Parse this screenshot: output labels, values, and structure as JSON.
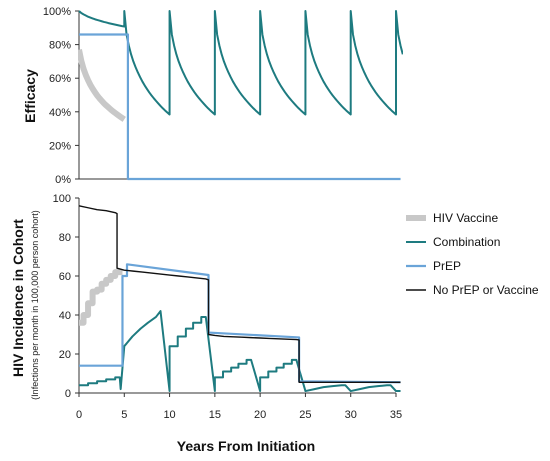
{
  "chart_data": [
    {
      "type": "line",
      "ylabel": "Efficacy",
      "xlim": [
        0,
        35
      ],
      "ylim": [
        0,
        100
      ],
      "y_ticks": [
        "0%",
        "20%",
        "40%",
        "60%",
        "80%",
        "100%"
      ],
      "y_tick_values": [
        0,
        20,
        40,
        60,
        80,
        100
      ],
      "grid": false,
      "series": [
        {
          "name": "HIV Vaccine",
          "color": "#c8c8c8",
          "x": [
            0,
            0.25,
            0.5,
            0.75,
            1,
            1.25,
            1.5,
            1.75,
            2,
            2.25,
            2.5,
            2.75,
            3,
            3.25,
            3.5,
            3.75,
            4,
            4.25,
            4.5,
            4.75,
            5
          ],
          "y": [
            77,
            70.4,
            65.6,
            61.9,
            58.8,
            56.1,
            53.8,
            51.7,
            49.8,
            48.1,
            46.6,
            45.1,
            43.8,
            42.6,
            41.4,
            40.3,
            39.3,
            38.3,
            37.3,
            36.4,
            35.5
          ]
        },
        {
          "name": "Combination",
          "color": "#1e7b80",
          "x": [
            0,
            0.25,
            0.5,
            0.75,
            1,
            1.25,
            1.5,
            1.75,
            2,
            2.25,
            2.5,
            2.75,
            3,
            3.25,
            3.5,
            3.75,
            4,
            4.25,
            4.5,
            4.75,
            5,
            5,
            5.25,
            5.5,
            5.75,
            6,
            6.25,
            6.5,
            6.75,
            7,
            7.25,
            7.5,
            7.75,
            8,
            8.25,
            8.5,
            8.75,
            9,
            9.25,
            9.5,
            9.75,
            10,
            10,
            10.25,
            10.5,
            10.75,
            11,
            11.25,
            11.5,
            11.75,
            12,
            12.25,
            12.5,
            12.75,
            13,
            13.25,
            13.5,
            13.75,
            14,
            14.25,
            14.5,
            14.75,
            15,
            15,
            15.25,
            15.5,
            15.75,
            16,
            16.25,
            16.5,
            16.75,
            17,
            17.25,
            17.5,
            17.75,
            18,
            18.25,
            18.5,
            18.75,
            19,
            19.25,
            19.5,
            19.75,
            20,
            20,
            20.25,
            20.5,
            20.75,
            21,
            21.25,
            21.5,
            21.75,
            22,
            22.25,
            22.5,
            22.75,
            23,
            23.25,
            23.5,
            23.75,
            24,
            24.25,
            24.5,
            24.75,
            25,
            25,
            25.25,
            25.5,
            25.75,
            26,
            26.25,
            26.5,
            26.75,
            27,
            27.25,
            27.5,
            27.75,
            28,
            28.25,
            28.5,
            28.75,
            29,
            29.25,
            29.5,
            29.75,
            30,
            30,
            30.25,
            30.5,
            30.75,
            31,
            31.25,
            31.5,
            31.75,
            32,
            32.25,
            32.5,
            32.75,
            33,
            33.25,
            33.5,
            33.75,
            34,
            34.25,
            34.5,
            34.75,
            35,
            35,
            35.25,
            35.5,
            35.75
          ],
          "y": [
            100,
            98.8,
            98,
            97.3,
            96.6,
            96.1,
            95.6,
            95.1,
            94.7,
            94.3,
            93.9,
            93.5,
            93.2,
            92.8,
            92.5,
            92.2,
            91.9,
            91.6,
            91.3,
            91,
            90.8,
            100,
            86,
            79.4,
            74.2,
            70,
            66.5,
            63.4,
            60.6,
            58,
            55.7,
            53.6,
            51.6,
            49.8,
            48.1,
            46.5,
            45,
            43.5,
            42.1,
            40.8,
            39.6,
            38.4,
            100,
            86,
            79.4,
            74.2,
            70,
            66.5,
            63.4,
            60.6,
            58,
            55.7,
            53.6,
            51.6,
            49.8,
            48.1,
            46.5,
            45,
            43.5,
            42.1,
            40.8,
            39.6,
            38.4,
            100,
            86,
            79.4,
            74.2,
            70,
            66.5,
            63.4,
            60.6,
            58,
            55.7,
            53.6,
            51.6,
            49.8,
            48.1,
            46.5,
            45,
            43.5,
            42.1,
            40.8,
            39.6,
            38.4,
            100,
            86,
            79.4,
            74.2,
            70,
            66.5,
            63.4,
            60.6,
            58,
            55.7,
            53.6,
            51.6,
            49.8,
            48.1,
            46.5,
            45,
            43.5,
            42.1,
            40.8,
            39.6,
            38.4,
            100,
            86,
            79.4,
            74.2,
            70,
            66.5,
            63.4,
            60.6,
            58,
            55.7,
            53.6,
            51.6,
            49.8,
            48.1,
            46.5,
            45,
            43.5,
            42.1,
            40.8,
            39.6,
            38.4,
            100,
            86,
            79.4,
            74.2,
            70,
            66.5,
            63.4,
            60.6,
            58,
            55.7,
            53.6,
            51.6,
            49.8,
            48.1,
            46.5,
            45,
            43.5,
            42.1,
            40.8,
            39.6,
            38.4,
            100,
            86,
            79.4,
            74.2
          ]
        },
        {
          "name": "PrEP",
          "color": "#6aa4d8",
          "x": [
            0,
            5.4,
            5.4,
            35.5
          ],
          "y": [
            86,
            86,
            0,
            0
          ]
        }
      ]
    },
    {
      "type": "line",
      "ylabel": "HIV Incidence in Cohort",
      "ylabel_sub": "(Infections per month in 100,000 person cohort)",
      "xlabel": "Years From Initiation",
      "xlim": [
        0,
        35
      ],
      "ylim": [
        0,
        100
      ],
      "x_ticks": [
        "0",
        "5",
        "10",
        "15",
        "20",
        "25",
        "30",
        "35"
      ],
      "x_tick_values": [
        0,
        5,
        10,
        15,
        20,
        25,
        30,
        35
      ],
      "y_ticks": [
        "0",
        "20",
        "40",
        "60",
        "80",
        "100"
      ],
      "y_tick_values": [
        0,
        20,
        40,
        60,
        80,
        100
      ],
      "grid": false,
      "legend_position": "right",
      "series": [
        {
          "name": "HIV Vaccine",
          "color": "#c8c8c8",
          "x": [
            0,
            0.5,
            0.5,
            1,
            1,
            1.5,
            1.5,
            2,
            2,
            2.5,
            2.5,
            3,
            3,
            3.5,
            3.5,
            4,
            4,
            4.8
          ],
          "y": [
            36,
            36,
            40,
            40,
            46,
            46,
            52,
            52,
            53,
            53,
            56,
            56,
            58,
            58,
            60,
            60,
            62,
            62
          ]
        },
        {
          "name": "Combination",
          "color": "#1e7b80",
          "x": [
            0,
            1,
            1,
            2,
            2,
            3,
            3,
            4,
            4,
            4.5,
            4.6,
            5,
            5,
            5.9,
            5.9,
            6.8,
            6.8,
            7.6,
            7.6,
            8.5,
            8.5,
            9,
            10,
            10,
            10.9,
            10.9,
            11.8,
            11.8,
            12.6,
            12.6,
            13.5,
            13.5,
            14,
            15,
            15,
            15.9,
            15.9,
            16.8,
            16.8,
            17.6,
            17.6,
            18.5,
            18.5,
            19,
            20,
            20,
            20.9,
            20.9,
            21.8,
            21.8,
            22.6,
            22.6,
            23.5,
            23.5,
            24,
            25,
            25,
            26,
            26,
            27,
            27,
            28,
            28,
            29,
            29,
            29.4,
            30,
            30,
            31,
            31,
            32,
            32,
            33,
            33,
            34,
            34,
            34.4,
            35,
            35,
            35.5
          ],
          "y": [
            4,
            4,
            5,
            5,
            6,
            6,
            7,
            7,
            8,
            8,
            2,
            24,
            24,
            29,
            29,
            33,
            33,
            36,
            36,
            39,
            39,
            42,
            1,
            24,
            24,
            29,
            29,
            33,
            33,
            36,
            36,
            39,
            39,
            1,
            8,
            8,
            11,
            11,
            13,
            13,
            15,
            15,
            17,
            17,
            1,
            8,
            8,
            11,
            11,
            13,
            13,
            15,
            15,
            17,
            17,
            1,
            1,
            2,
            2,
            3,
            3,
            3.5,
            3.5,
            4,
            4,
            4,
            1,
            1,
            2,
            2,
            3,
            3,
            3.5,
            3.5,
            4,
            4,
            4,
            1,
            1,
            1
          ]
        },
        {
          "name": "PrEP",
          "color": "#6aa4d8",
          "x": [
            0,
            4.8,
            4.8,
            5.3,
            5.3,
            14.3,
            14.3,
            24.3,
            24.3,
            35.5
          ],
          "y": [
            14,
            14,
            60,
            60,
            66,
            60.5,
            31,
            28.5,
            6,
            5.5
          ]
        },
        {
          "name": "No PrEP or Vaccine",
          "color": "#111111",
          "x": [
            0,
            1,
            2,
            3,
            4,
            4.2,
            4.2,
            5,
            6,
            7,
            8,
            9,
            10,
            11,
            12,
            13,
            14,
            14.3,
            14.3,
            15,
            16,
            17,
            18,
            19,
            20,
            21,
            22,
            23,
            24,
            24.3,
            24.3,
            25,
            30,
            35,
            35.5
          ],
          "y": [
            96,
            95,
            94,
            93.5,
            92.5,
            92,
            64,
            63,
            62.5,
            62,
            61.5,
            61,
            60.5,
            60,
            59.5,
            59,
            58.5,
            58,
            30,
            29.5,
            29,
            28.8,
            28.6,
            28.4,
            28.2,
            28,
            27.8,
            27.6,
            27.4,
            27.2,
            5.5,
            5.5,
            5.5,
            5.5,
            5.5
          ]
        }
      ]
    }
  ]
}
